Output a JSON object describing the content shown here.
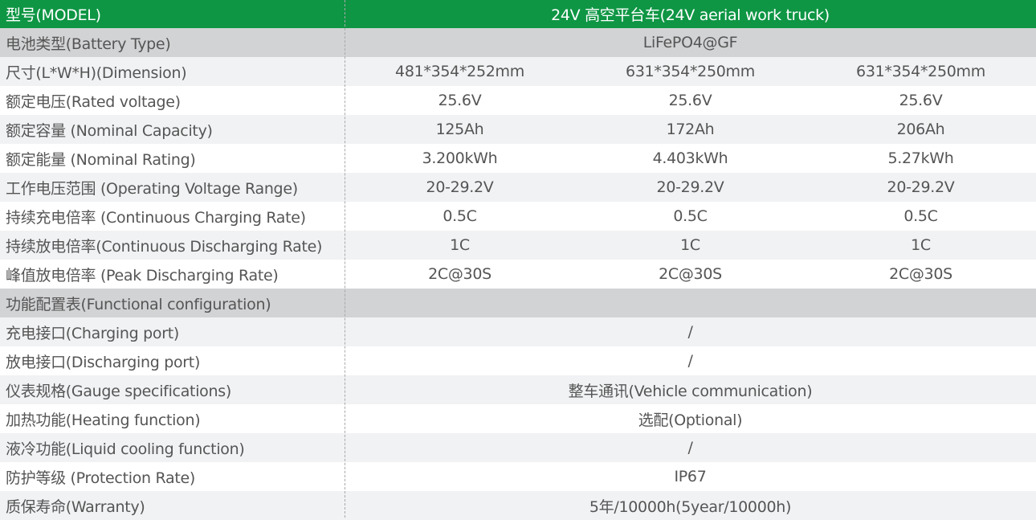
{
  "header": {
    "label": "型号(MODEL)",
    "value": "24V 高空平台车(24V aerial work truck)"
  },
  "colors": {
    "header_bg": "#0e9644",
    "section_bg": "#d2d3d5",
    "alt_row_bg": "#f1f2f4"
  },
  "rows": [
    {
      "label": "电池类型(Battery Type)",
      "style": "gray",
      "values": [
        "LiFePO4@GF"
      ]
    },
    {
      "label": "尺寸(L*W*H)(Dimension)",
      "style": "light",
      "values": [
        "481*354*252mm",
        "631*354*250mm",
        "631*354*250mm"
      ]
    },
    {
      "label": "额定电压(Rated voltage)",
      "style": "white",
      "values": [
        "25.6V",
        "25.6V",
        "25.6V"
      ]
    },
    {
      "label": "额定容量 (Nominal Capacity)",
      "style": "light",
      "values": [
        "125Ah",
        "172Ah",
        "206Ah"
      ]
    },
    {
      "label": "额定能量 (Nominal Rating)",
      "style": "white",
      "values": [
        "3.200kWh",
        "4.403kWh",
        "5.27kWh"
      ]
    },
    {
      "label": "工作电压范围 (Operating Voltage Range)",
      "style": "light",
      "values": [
        "20-29.2V",
        "20-29.2V",
        "20-29.2V"
      ]
    },
    {
      "label": "持续充电倍率 (Continuous Charging Rate)",
      "style": "white",
      "values": [
        "0.5C",
        "0.5C",
        "0.5C"
      ]
    },
    {
      "label": "持续放电倍率(Continuous Discharging Rate)",
      "style": "light",
      "values": [
        "1C",
        "1C",
        "1C"
      ]
    },
    {
      "label": "峰值放电倍率 (Peak Discharging Rate)",
      "style": "white",
      "values": [
        "2C@30S",
        "2C@30S",
        "2C@30S"
      ]
    },
    {
      "label": "功能配置表(Functional configuration)",
      "style": "gray",
      "values": []
    },
    {
      "label": "充电接口(Charging port)",
      "style": "light",
      "values": [
        "/"
      ]
    },
    {
      "label": "放电接口(Discharging port)",
      "style": "white",
      "values": [
        "/"
      ]
    },
    {
      "label": "仪表规格(Gauge specifications)",
      "style": "light",
      "values": [
        "整车通讯(Vehicle communication)"
      ]
    },
    {
      "label": "加热功能(Heating function)",
      "style": "white",
      "values": [
        "选配(Optional)"
      ]
    },
    {
      "label": "液冷功能(Liquid cooling function)",
      "style": "light",
      "values": [
        "/"
      ]
    },
    {
      "label": "防护等级 (Protection Rate)",
      "style": "white",
      "values": [
        "IP67"
      ]
    },
    {
      "label": "质保寿命(Warranty)",
      "style": "light",
      "values": [
        "5年/10000h(5year/10000h)"
      ]
    }
  ]
}
